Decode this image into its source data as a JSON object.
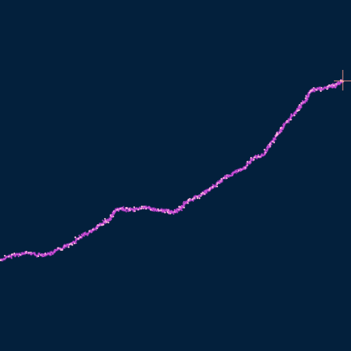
{
  "scene": {
    "background_color": "#03203c",
    "trail_color": "#d04fd8",
    "trail_highlight_color": "#ffb8e0",
    "trail_glow_color": "#8a2fb0",
    "cursor_icon": "crosshair-icon",
    "cursor_color": "#ff9a8a"
  }
}
